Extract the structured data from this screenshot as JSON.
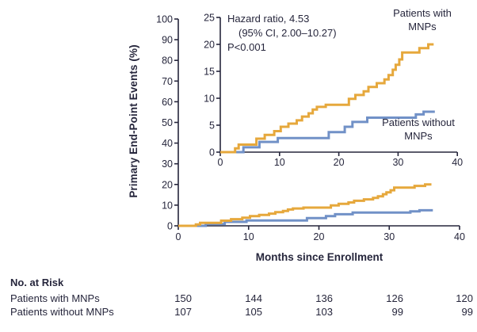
{
  "figure": {
    "y_axis_title": "Primary End-Point Events (%)",
    "x_axis_title": "Months since Enrollment",
    "annotation": {
      "line1": "Hazard ratio, 4.53",
      "line2": "(95% CI, 2.00–10.27)",
      "line3": "P<0.001"
    },
    "legend_with_line1": "Patients with",
    "legend_with_line2": "MNPs",
    "legend_without_line1": "Patients without",
    "legend_without_line2": "MNPs"
  },
  "chart_data": {
    "type": "line",
    "style": "step-after",
    "title": "",
    "xlabel": "Months since Enrollment",
    "ylabel": "Primary End-Point Events (%)",
    "main_axis": {
      "xlim": [
        0,
        40
      ],
      "ylim": [
        0,
        100
      ],
      "xticks": [
        0,
        10,
        20,
        30,
        40
      ],
      "yticks": [
        0,
        10,
        20,
        30,
        40,
        50,
        60,
        70,
        80,
        90,
        100
      ],
      "grid": false
    },
    "inset_axis": {
      "xlim": [
        0,
        40
      ],
      "ylim": [
        0,
        25
      ],
      "xticks": [
        0,
        10,
        20,
        30,
        40
      ],
      "yticks": [
        0,
        5,
        10,
        15,
        20,
        25
      ],
      "grid": false
    },
    "annotation_text": "Hazard ratio, 4.53 (95% CI, 2.00–10.27) P<0.001",
    "series": [
      {
        "name": "Patients without MNPs",
        "color": "#7191C7",
        "steps": [
          [
            0,
            0
          ],
          [
            3.9,
            0.9
          ],
          [
            6.6,
            1.9
          ],
          [
            9.7,
            2.6
          ],
          [
            18.3,
            3.7
          ],
          [
            21.0,
            4.7
          ],
          [
            22.3,
            5.6
          ],
          [
            24.8,
            6.4
          ],
          [
            33.0,
            7.0
          ],
          [
            34.3,
            7.5
          ],
          [
            36.2,
            7.5
          ]
        ]
      },
      {
        "name": "Patients with MNPs",
        "color": "#E6A83C",
        "steps": [
          [
            0,
            0
          ],
          [
            2.5,
            0.7
          ],
          [
            3.1,
            1.4
          ],
          [
            6.1,
            2.5
          ],
          [
            7.5,
            3.2
          ],
          [
            9.1,
            3.9
          ],
          [
            10.2,
            4.7
          ],
          [
            11.5,
            5.3
          ],
          [
            12.9,
            5.9
          ],
          [
            13.8,
            6.6
          ],
          [
            14.9,
            7.2
          ],
          [
            15.6,
            7.9
          ],
          [
            16.3,
            8.4
          ],
          [
            17.8,
            8.8
          ],
          [
            21.7,
            9.9
          ],
          [
            22.8,
            10.6
          ],
          [
            24.2,
            11.3
          ],
          [
            25.0,
            12.1
          ],
          [
            26.4,
            12.8
          ],
          [
            27.7,
            13.5
          ],
          [
            28.4,
            14.3
          ],
          [
            29.1,
            15.3
          ],
          [
            29.6,
            16.2
          ],
          [
            30.2,
            17.2
          ],
          [
            30.7,
            18.5
          ],
          [
            33.6,
            19.3
          ],
          [
            35.1,
            20.0
          ],
          [
            36.0,
            20.0
          ]
        ]
      }
    ]
  },
  "risk_table": {
    "title": "No. at Risk",
    "rows": [
      {
        "label": "Patients with MNPs",
        "values": [
          "150",
          "144",
          "136",
          "126",
          "120"
        ]
      },
      {
        "label": "Patients without MNPs",
        "values": [
          "107",
          "105",
          "103",
          "99",
          "99"
        ]
      }
    ]
  },
  "colors": {
    "with_mnps": "#E6A83C",
    "without_mnps": "#7191C7",
    "axis": "#26263C",
    "text": "#26263C"
  }
}
